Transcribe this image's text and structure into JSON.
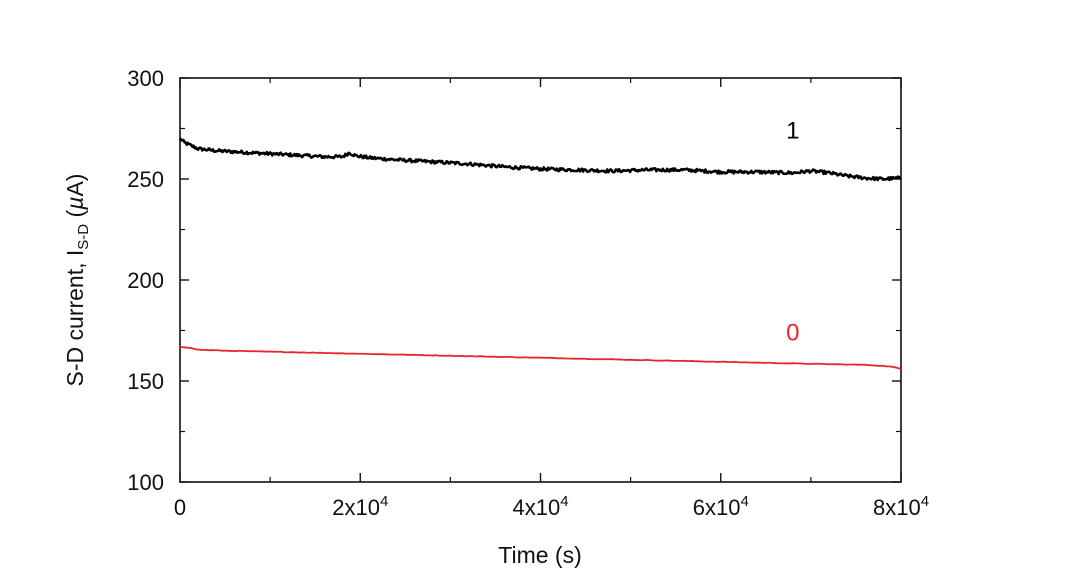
{
  "chart_data": {
    "type": "line",
    "title": "",
    "xlabel": "Time (s)",
    "ylabel": {
      "prefix": "S-D current, I",
      "subscript": "S-D",
      "suffix": " (",
      "unit_greek": "µ",
      "unit_rest": "A)"
    },
    "xlim": [
      0,
      80000
    ],
    "ylim": [
      100,
      300
    ],
    "x_ticks": [
      {
        "value": 0,
        "base": "0",
        "exp": ""
      },
      {
        "value": 20000,
        "base": "2x10",
        "exp": "4"
      },
      {
        "value": 40000,
        "base": "4x10",
        "exp": "4"
      },
      {
        "value": 60000,
        "base": "6x10",
        "exp": "4"
      },
      {
        "value": 80000,
        "base": "8x10",
        "exp": "4"
      }
    ],
    "y_ticks": [
      100,
      150,
      200,
      250,
      300
    ],
    "grid": false,
    "series": [
      {
        "name": "1",
        "color": "#000000",
        "x": [
          0,
          500,
          1000,
          2000,
          4000,
          6000,
          8000,
          10000,
          12000,
          14000,
          16000,
          18000,
          18800,
          19500,
          21000,
          24000,
          28000,
          32000,
          36000,
          40000,
          44000,
          48000,
          52000,
          56000,
          60000,
          64000,
          68000,
          70000,
          72000,
          74000,
          76000,
          78000,
          80000
        ],
        "values": [
          270,
          268,
          267,
          265,
          264,
          263.5,
          263,
          262.5,
          262,
          261.5,
          261,
          261,
          263,
          261.5,
          260.5,
          259.5,
          258.5,
          257.5,
          256,
          255,
          254.5,
          254,
          254.5,
          254.5,
          253.5,
          253.5,
          253,
          254,
          253,
          251.5,
          250.5,
          250,
          250.5
        ]
      },
      {
        "name": "0",
        "color": "#e8242c",
        "x": [
          0,
          1000,
          2000,
          5000,
          10000,
          20000,
          30000,
          40000,
          50000,
          60000,
          70000,
          76000,
          78000,
          79000,
          80000
        ],
        "values": [
          167,
          166.5,
          165.5,
          165,
          164.5,
          163.5,
          162.5,
          161.5,
          160.5,
          159.5,
          158.5,
          158,
          157.5,
          157,
          156
        ]
      }
    ],
    "series_labels": [
      {
        "text": "1",
        "x": 68000,
        "y": 270,
        "color": "#000000"
      },
      {
        "text": "0",
        "x": 68000,
        "y": 170,
        "color": "#e8242c"
      }
    ]
  }
}
